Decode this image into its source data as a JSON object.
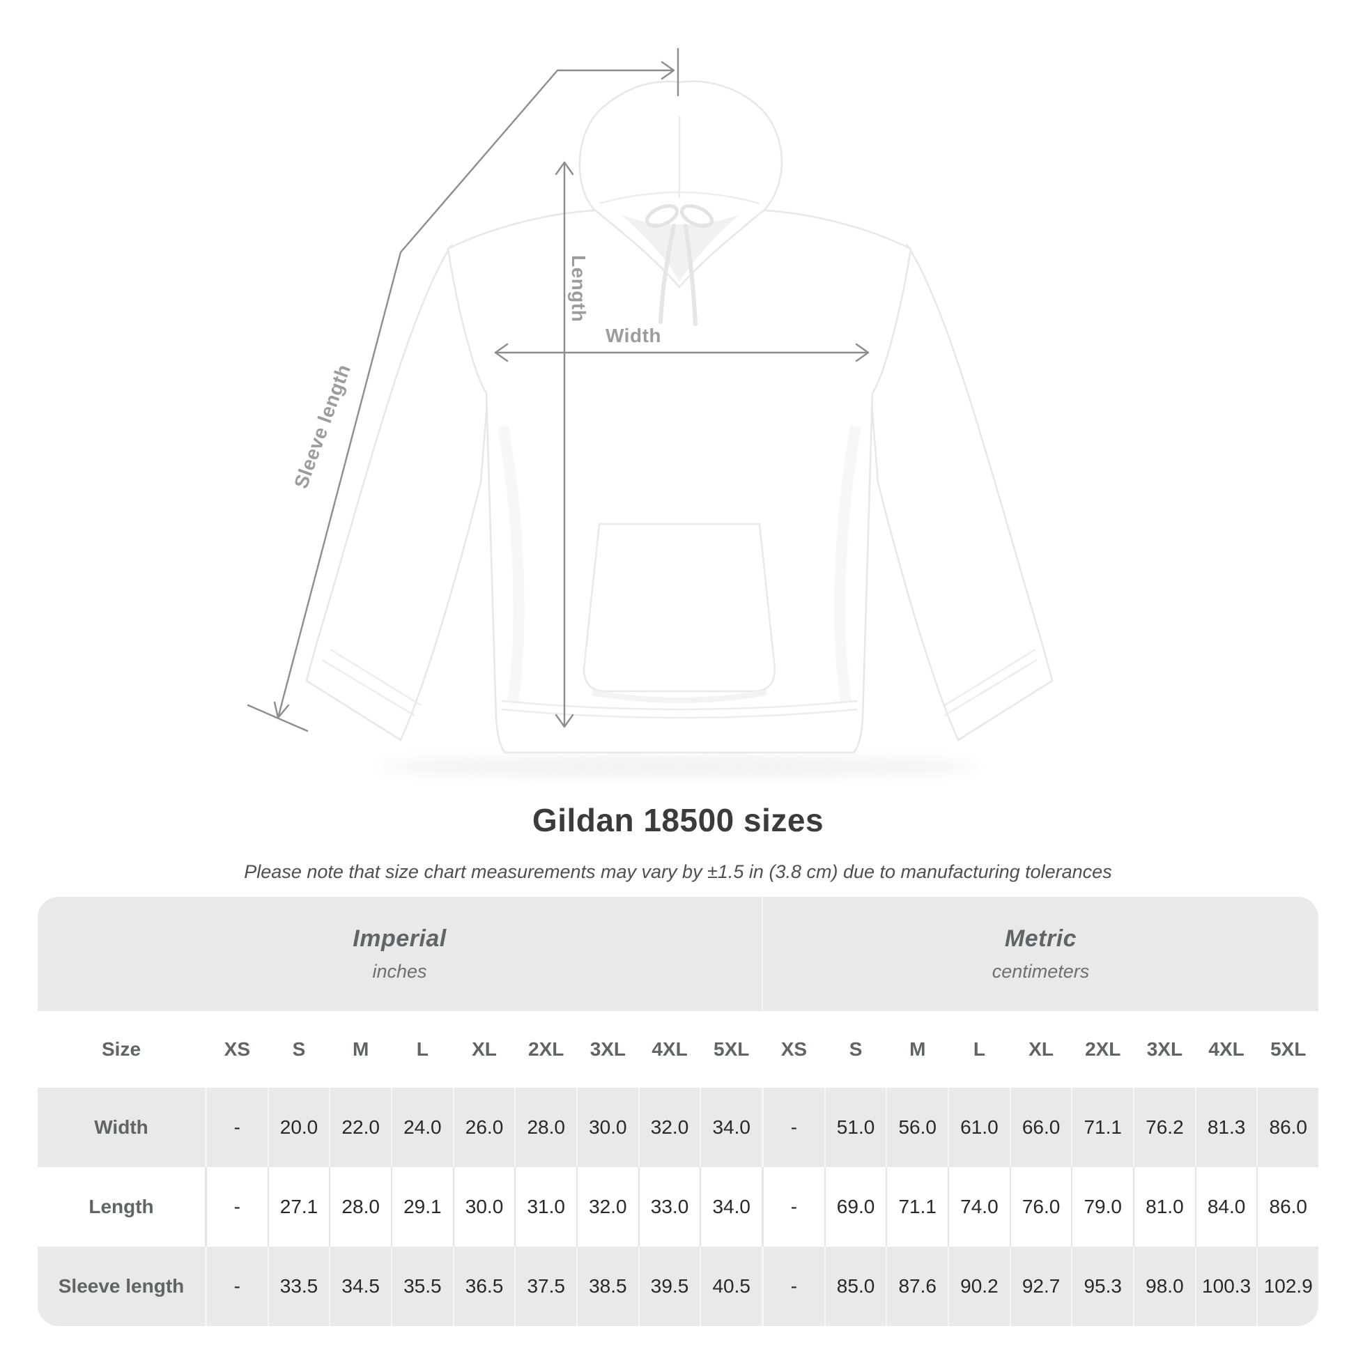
{
  "page": {
    "background": "#ffffff"
  },
  "diagram": {
    "garment": "white hooded sweatshirt, front view",
    "labels": {
      "length": "Length",
      "width": "Width",
      "sleeve": "Sleeve length"
    }
  },
  "heading": {
    "title": "Gildan 18500 sizes",
    "subtitle": "Please note that size chart measurements may vary by ±1.5 in (3.8 cm) due to manufacturing tolerances"
  },
  "table": {
    "sections": [
      {
        "label": "Imperial",
        "sublabel": "inches"
      },
      {
        "label": "Metric",
        "sublabel": "centimeters"
      }
    ],
    "size_header": "Size",
    "sizes": [
      "XS",
      "S",
      "M",
      "L",
      "XL",
      "2XL",
      "3XL",
      "4XL",
      "5XL"
    ],
    "rows": [
      {
        "label": "Width",
        "imperial": [
          "-",
          "20.0",
          "22.0",
          "24.0",
          "26.0",
          "28.0",
          "30.0",
          "32.0",
          "34.0"
        ],
        "metric": [
          "-",
          "51.0",
          "56.0",
          "61.0",
          "66.0",
          "71.1",
          "76.2",
          "81.3",
          "86.0"
        ]
      },
      {
        "label": "Length",
        "imperial": [
          "-",
          "27.1",
          "28.0",
          "29.1",
          "30.0",
          "31.0",
          "32.0",
          "33.0",
          "34.0"
        ],
        "metric": [
          "-",
          "69.0",
          "71.1",
          "74.0",
          "76.0",
          "79.0",
          "81.0",
          "84.0",
          "86.0"
        ]
      },
      {
        "label": "Sleeve length",
        "imperial": [
          "-",
          "33.5",
          "34.5",
          "35.5",
          "36.5",
          "37.5",
          "38.5",
          "39.5",
          "40.5"
        ],
        "metric": [
          "-",
          "85.0",
          "87.6",
          "90.2",
          "92.7",
          "95.3",
          "98.0",
          "100.3",
          "102.9"
        ]
      }
    ]
  },
  "colors": {
    "measure_line": "#8d8d8d",
    "measure_label": "#9c9c9c",
    "table_band": "#e9e9e9",
    "table_header_text": "#5f6467",
    "value_text": "#26282a",
    "title_text": "#3b3b3b",
    "subtitle_text": "#4f4f4f"
  }
}
